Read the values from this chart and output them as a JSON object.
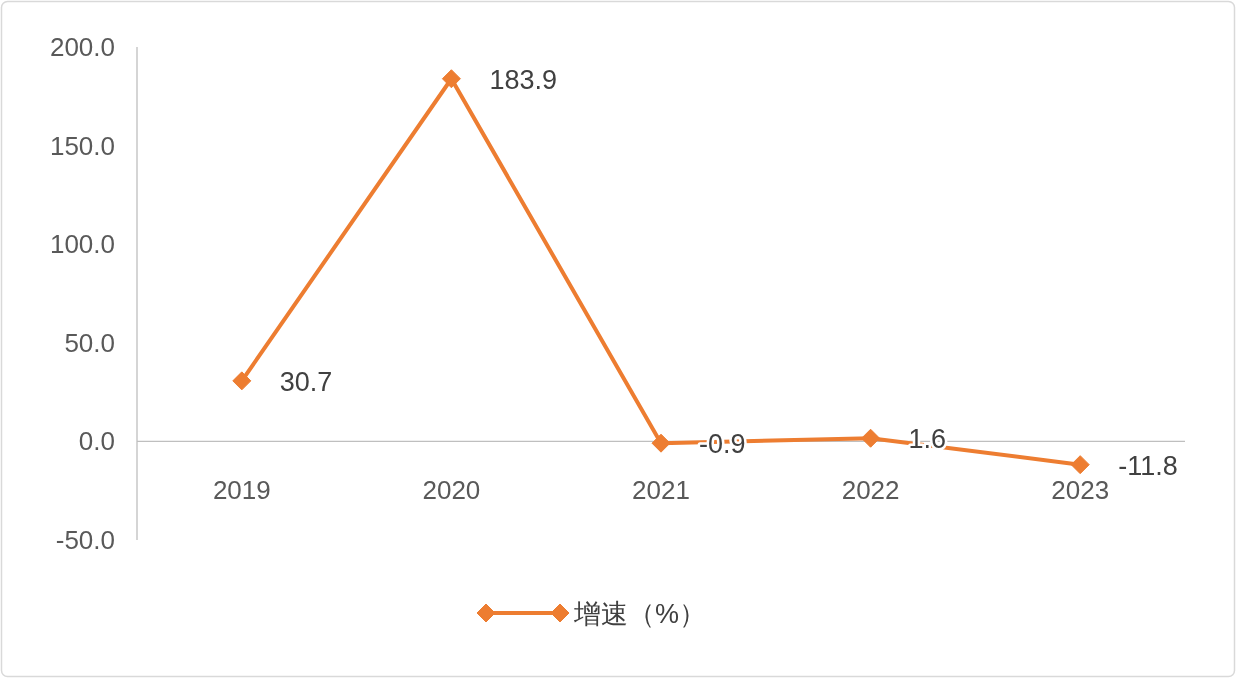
{
  "chart_data": {
    "type": "line",
    "categories": [
      "2019",
      "2020",
      "2021",
      "2022",
      "2023"
    ],
    "series": [
      {
        "name": "增速（%）",
        "color": "#ed7d31",
        "values": [
          30.7,
          183.9,
          -0.9,
          1.6,
          -11.8
        ]
      }
    ],
    "ylim": [
      -50,
      200
    ],
    "yticks": [
      {
        "value": -50,
        "label": "-50.0"
      },
      {
        "value": 0,
        "label": "0.0"
      },
      {
        "value": 50,
        "label": "50.0"
      },
      {
        "value": 100,
        "label": "100.0"
      },
      {
        "value": 150,
        "label": "150.0"
      },
      {
        "value": 200,
        "label": "200.0"
      }
    ],
    "data_labels": true,
    "legend": "bottom",
    "marker": "diamond",
    "line_style": "solid",
    "grid": false
  }
}
